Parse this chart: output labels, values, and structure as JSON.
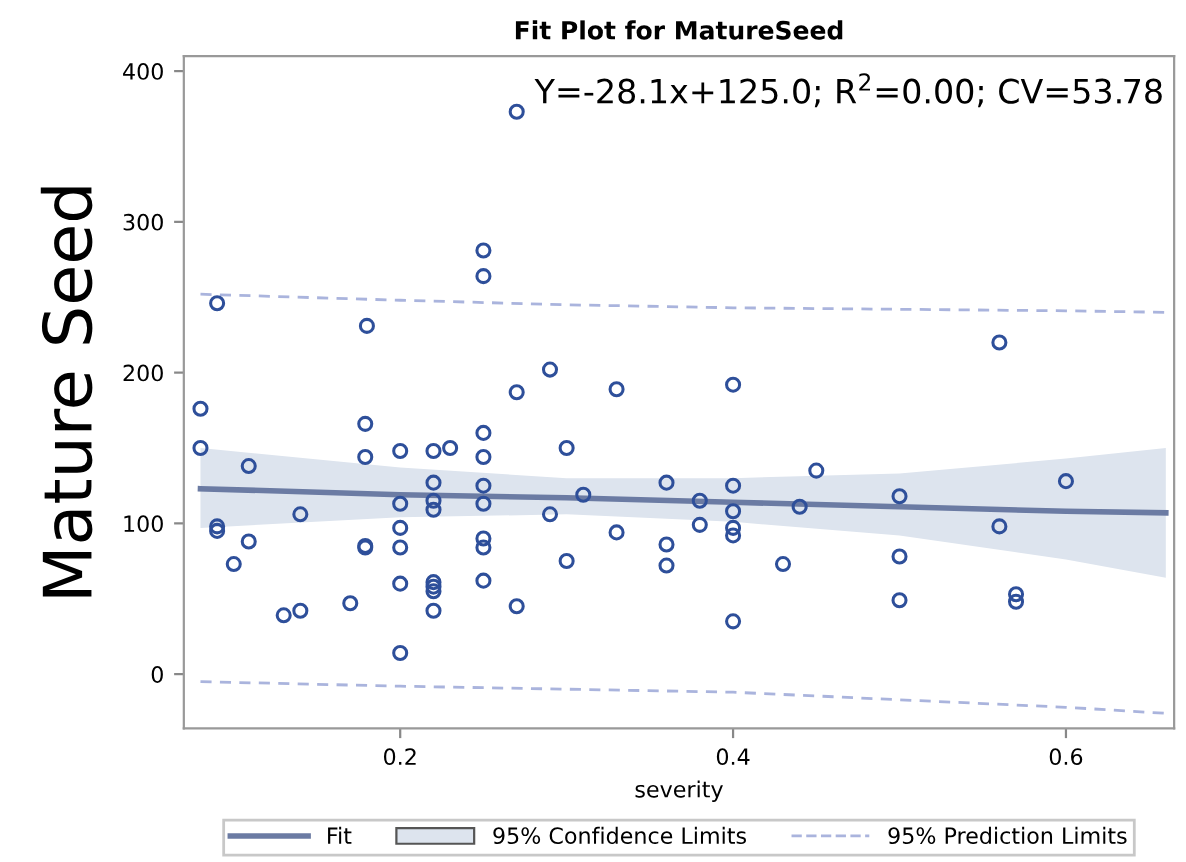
{
  "chart_data": {
    "type": "scatter",
    "title": "Fit Plot for MatureSeed",
    "xlabel": "severity",
    "ylabel": "Mature Seed",
    "annotations": [
      "Y=-28.1x+125.0; R$^{2}$=0.00; CV=53.78",
      "95% Confidence Limits"
    ],
    "xlim": [
      0.07,
      0.665
    ],
    "xticks": [
      0.2,
      0.4,
      0.6
    ],
    "ylim": [
      -36,
      410
    ],
    "yticks": [
      0,
      100,
      200,
      300,
      400
    ],
    "grid": false,
    "legend": "bottom",
    "series": [
      {
        "type": "line",
        "name": "95% Prediction Limits",
        "marker": "none",
        "color": "#aab4dd",
        "line_style": "dashed",
        "x": [
          0.08,
          0.2,
          0.3,
          0.4,
          0.5,
          0.6,
          0.66
        ],
        "values": [
          252,
          248,
          245,
          243,
          242,
          241,
          240
        ]
      },
      {
        "type": "line",
        "marker": "none",
        "color": "#aab4dd",
        "line_style": "dashed",
        "x": [
          0.08,
          0.2,
          0.3,
          0.4,
          0.5,
          0.6,
          0.66
        ],
        "values": [
          -5,
          -8,
          -10,
          -12,
          -17,
          -22,
          -26
        ]
      },
      {
        "type": "line",
        "name": "Fit",
        "marker": "none",
        "color": "#6b7ba3",
        "line_style": "solid",
        "x": [
          0.08,
          0.2,
          0.3,
          0.4,
          0.5,
          0.6,
          0.66
        ],
        "values": [
          123,
          119,
          117,
          114,
          111,
          108,
          107
        ],
        "lower": [
          97,
          104,
          106,
          101,
          92,
          76,
          64
        ],
        "upper": [
          150,
          137,
          130,
          130,
          133,
          143,
          150
        ]
      },
      {
        "marker": "circle",
        "color": "#2e4f9a",
        "x": [
          0.08,
          0.08,
          0.09,
          0.09,
          0.109,
          0.1,
          0.109,
          0.13,
          0.14,
          0.14,
          0.17,
          0.179,
          0.179,
          0.179,
          0.179,
          0.2,
          0.2,
          0.2,
          0.2,
          0.2,
          0.2,
          0.22,
          0.22,
          0.22,
          0.22,
          0.22,
          0.22,
          0.22,
          0.22,
          0.23,
          0.25,
          0.25,
          0.25,
          0.25,
          0.25,
          0.25,
          0.25,
          0.27,
          0.29,
          0.3,
          0.3,
          0.31,
          0.33,
          0.09,
          0.18,
          0.25,
          0.25,
          0.27,
          0.29,
          0.27,
          0.33,
          0.4,
          0.56,
          0.36,
          0.38,
          0.4,
          0.4,
          0.38,
          0.4,
          0.4,
          0.44,
          0.45,
          0.36,
          0.36,
          0.43,
          0.4,
          0.5,
          0.5,
          0.5,
          0.56,
          0.57,
          0.57,
          0.6
        ],
        "values": [
          176,
          150,
          98,
          95,
          138,
          73,
          88,
          39,
          42,
          106,
          47,
          166,
          144,
          85,
          84,
          148,
          113,
          97,
          84,
          60,
          14,
          148,
          127,
          115,
          109,
          61,
          58,
          55,
          42,
          150,
          160,
          144,
          125,
          113,
          90,
          84,
          62,
          45,
          106,
          150,
          75,
          119,
          94,
          246,
          231,
          281,
          264,
          373,
          202,
          187,
          189,
          192,
          220,
          127,
          115,
          125,
          108,
          99,
          97,
          92,
          111,
          135,
          86,
          72,
          73,
          35,
          118,
          78,
          49,
          98,
          53,
          48,
          128
        ]
      }
    ]
  }
}
